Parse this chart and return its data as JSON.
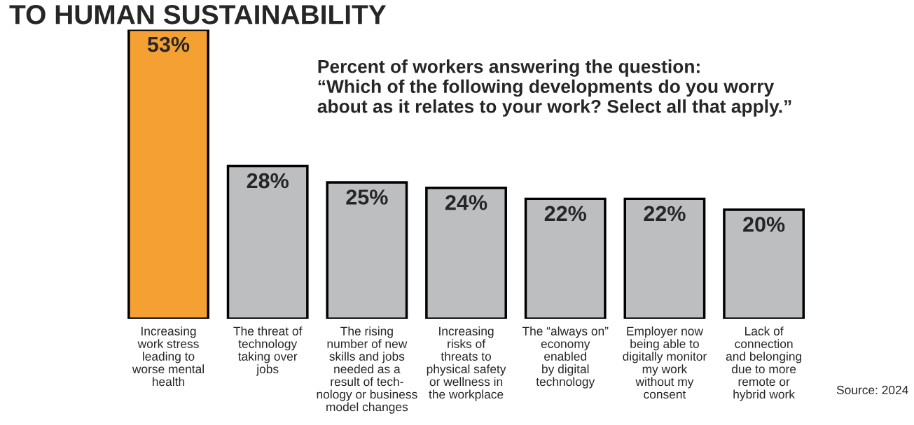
{
  "chart_data": {
    "type": "bar",
    "title": "TO HUMAN SUSTAINABILITY",
    "subtitle": "Percent of workers answering the question:\n“Which of the following developments do you worry\nabout as it relates to your work? Select all that apply.”",
    "categories": [
      "Increasing\nwork stress\nleading to\nworse mental\nhealth",
      "The threat of\ntechnology\ntaking over\njobs",
      "The rising\nnumber of new\nskills and jobs\nneeded as a\nresult of tech-\nnology or business\nmodel changes",
      "Increasing\nrisks of\nthreats to\nphysical safety\nor wellness in\nthe workplace",
      "The “always on”\neconomy\nenabled\nby digital\ntechnology",
      "Employer now\nbeing able to\ndigitally monitor\nmy work\nwithout my\nconsent",
      "Lack of\nconnection\nand belonging\ndue to more\nremote or\nhybrid work"
    ],
    "values": [
      53,
      28,
      25,
      24,
      22,
      22,
      20
    ],
    "colors": [
      "#f5a033",
      "#bcbec0",
      "#bcbec0",
      "#bcbec0",
      "#bcbec0",
      "#bcbec0",
      "#bcbec0"
    ],
    "value_labels": [
      "53%",
      "28%",
      "25%",
      "24%",
      "22%",
      "22%",
      "20%"
    ],
    "ylim": [
      0,
      53
    ],
    "annotations": [
      "Source: 2024"
    ],
    "grid": false,
    "legend": false
  }
}
